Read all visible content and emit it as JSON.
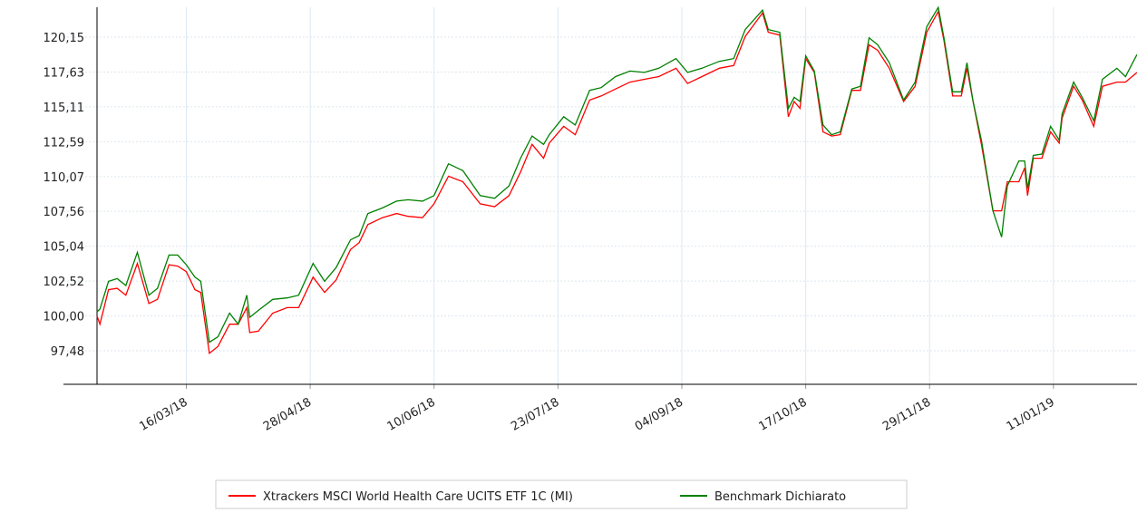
{
  "chart_data": {
    "type": "line",
    "x": [
      "2018-02-13",
      "2018-02-14",
      "2018-02-17",
      "2018-02-20",
      "2018-02-23",
      "2018-02-27",
      "2018-03-03",
      "2018-03-06",
      "2018-03-10",
      "2018-03-13",
      "2018-03-16",
      "2018-03-19",
      "2018-03-21",
      "2018-03-24",
      "2018-03-27",
      "2018-03-31",
      "2018-04-03",
      "2018-04-06",
      "2018-04-07",
      "2018-04-10",
      "2018-04-15",
      "2018-04-20",
      "2018-04-24",
      "2018-04-29",
      "2018-05-03",
      "2018-05-07",
      "2018-05-12",
      "2018-05-15",
      "2018-05-18",
      "2018-05-23",
      "2018-05-28",
      "2018-06-01",
      "2018-06-06",
      "2018-06-10",
      "2018-06-15",
      "2018-06-20",
      "2018-06-26",
      "2018-07-01",
      "2018-07-06",
      "2018-07-10",
      "2018-07-14",
      "2018-07-18",
      "2018-07-20",
      "2018-07-25",
      "2018-07-29",
      "2018-08-03",
      "2018-08-07",
      "2018-08-12",
      "2018-08-17",
      "2018-08-22",
      "2018-08-27",
      "2018-09-02",
      "2018-09-06",
      "2018-09-11",
      "2018-09-17",
      "2018-09-22",
      "2018-09-26",
      "2018-10-02",
      "2018-10-04",
      "2018-10-08",
      "2018-10-11",
      "2018-10-13",
      "2018-10-15",
      "2018-10-17",
      "2018-10-20",
      "2018-10-23",
      "2018-10-26",
      "2018-10-29",
      "2018-11-02",
      "2018-11-05",
      "2018-11-08",
      "2018-11-11",
      "2018-11-15",
      "2018-11-20",
      "2018-11-24",
      "2018-11-28",
      "2018-12-02",
      "2018-12-04",
      "2018-12-07",
      "2018-12-10",
      "2018-12-12",
      "2018-12-14",
      "2018-12-17",
      "2018-12-21",
      "2018-12-24",
      "2018-12-26",
      "2018-12-30",
      "2019-01-01",
      "2019-01-02",
      "2019-01-04",
      "2019-01-07",
      "2019-01-10",
      "2019-01-13",
      "2019-01-14",
      "2019-01-18",
      "2019-01-21",
      "2019-01-25",
      "2019-01-28",
      "2019-02-02",
      "2019-02-05",
      "2019-02-09"
    ],
    "series": [
      {
        "name": "Xtrackers MSCI World Health Care UCITS ETF 1C (MI)",
        "color": "#ff0000",
        "values": [
          100.0,
          99.4,
          101.9,
          102.0,
          101.5,
          103.8,
          100.9,
          101.2,
          103.7,
          103.6,
          103.2,
          101.9,
          101.7,
          97.3,
          97.8,
          99.4,
          99.4,
          100.6,
          98.8,
          98.9,
          100.2,
          100.6,
          100.6,
          102.8,
          101.7,
          102.6,
          104.8,
          105.3,
          106.6,
          107.1,
          107.4,
          107.2,
          107.1,
          108.1,
          110.1,
          109.7,
          108.1,
          107.9,
          108.7,
          110.4,
          112.4,
          111.4,
          112.5,
          113.7,
          113.1,
          115.6,
          115.9,
          116.4,
          116.9,
          117.1,
          117.3,
          117.9,
          116.8,
          117.3,
          117.9,
          118.1,
          120.2,
          121.9,
          120.5,
          120.3,
          114.4,
          115.5,
          115.0,
          118.6,
          117.6,
          113.3,
          113.0,
          113.1,
          116.3,
          116.3,
          119.6,
          119.2,
          117.9,
          115.5,
          116.6,
          120.5,
          122.0,
          119.9,
          115.9,
          115.9,
          117.9,
          115.6,
          112.4,
          107.6,
          107.6,
          109.7,
          109.7,
          110.7,
          108.7,
          111.4,
          111.4,
          113.3,
          112.5,
          114.3,
          116.6,
          115.6,
          113.7,
          116.6,
          116.9,
          116.9,
          117.6
        ]
      },
      {
        "name": "Benchmark Dichiarato",
        "color": "#008000",
        "values": [
          100.3,
          100.5,
          102.5,
          102.7,
          102.2,
          104.6,
          101.5,
          102.0,
          104.4,
          104.4,
          103.7,
          102.8,
          102.5,
          98.1,
          98.5,
          100.2,
          99.4,
          101.5,
          99.9,
          100.4,
          101.2,
          101.3,
          101.5,
          103.8,
          102.5,
          103.5,
          105.5,
          105.8,
          107.4,
          107.8,
          108.3,
          108.4,
          108.3,
          108.7,
          111.0,
          110.5,
          108.7,
          108.5,
          109.4,
          111.4,
          113.0,
          112.4,
          113.1,
          114.4,
          113.8,
          116.3,
          116.5,
          117.3,
          117.7,
          117.6,
          117.9,
          118.6,
          117.6,
          117.9,
          118.4,
          118.6,
          120.7,
          122.1,
          120.7,
          120.5,
          115.0,
          115.8,
          115.5,
          118.8,
          117.7,
          113.8,
          113.1,
          113.3,
          116.4,
          116.6,
          120.1,
          119.6,
          118.3,
          115.6,
          116.9,
          120.9,
          122.3,
          120.1,
          116.2,
          116.2,
          118.3,
          115.6,
          112.7,
          107.6,
          105.7,
          109.4,
          111.2,
          111.2,
          109.2,
          111.6,
          111.7,
          113.7,
          112.7,
          114.6,
          116.9,
          115.8,
          114.1,
          117.1,
          117.9,
          117.3,
          118.9
        ]
      }
    ],
    "xlim": [
      "2018-02-13",
      "2019-02-09"
    ],
    "xticks": [
      {
        "value": "2018-03-16",
        "label": "16/03/18"
      },
      {
        "value": "2018-04-28",
        "label": "28/04/18"
      },
      {
        "value": "2018-06-10",
        "label": "10/06/18"
      },
      {
        "value": "2018-07-23",
        "label": "23/07/18"
      },
      {
        "value": "2018-09-04",
        "label": "04/09/18"
      },
      {
        "value": "2018-10-17",
        "label": "17/10/18"
      },
      {
        "value": "2018-11-29",
        "label": "29/11/18"
      },
      {
        "value": "2019-01-11",
        "label": "11/01/19"
      }
    ],
    "ylim": [
      95.06,
      122.31
    ],
    "yticks": [
      {
        "value": 97.48,
        "label": "97,48"
      },
      {
        "value": 100.0,
        "label": "100,00"
      },
      {
        "value": 102.52,
        "label": "102,52"
      },
      {
        "value": 105.04,
        "label": "105,04"
      },
      {
        "value": 107.56,
        "label": "107,56"
      },
      {
        "value": 110.07,
        "label": "110,07"
      },
      {
        "value": 112.59,
        "label": "112,59"
      },
      {
        "value": 115.11,
        "label": "115,11"
      },
      {
        "value": 117.63,
        "label": "117,63"
      },
      {
        "value": 120.15,
        "label": "120,15"
      }
    ],
    "grid": true
  }
}
